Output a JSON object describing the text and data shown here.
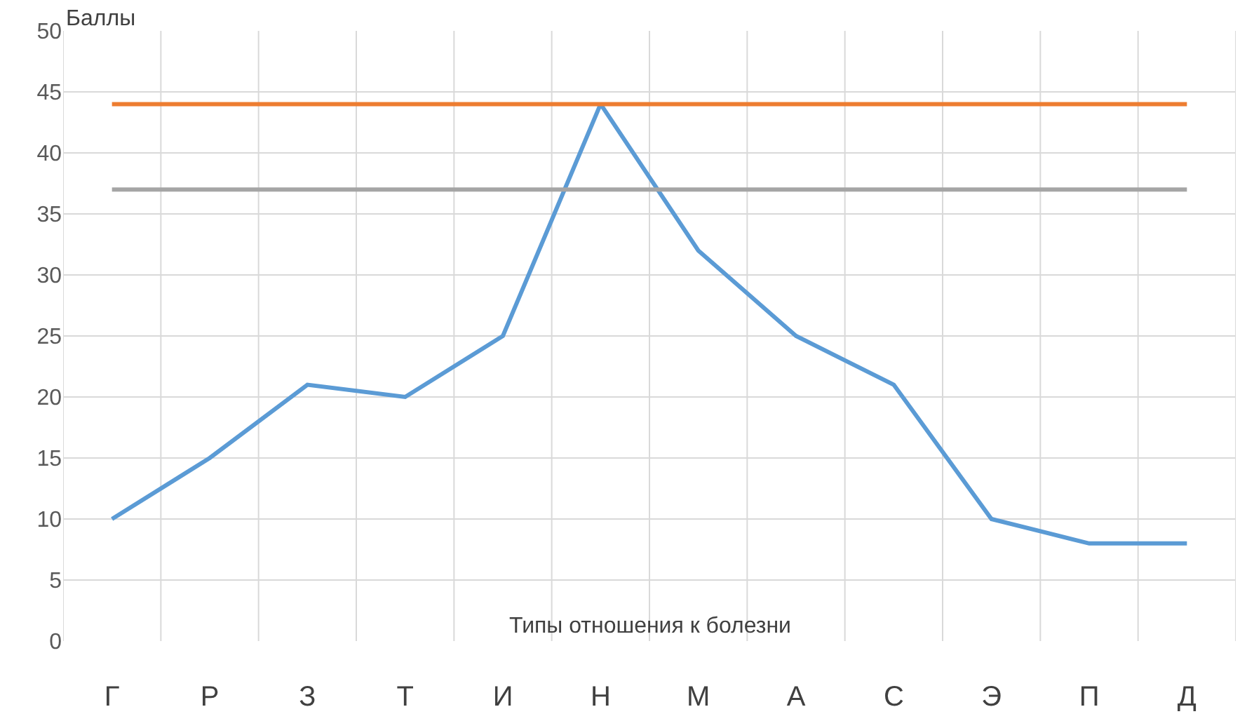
{
  "chart_data": {
    "type": "line",
    "ylabel": "Баллы",
    "xlabel": "Типы отношения к болезни",
    "categories": [
      "Г",
      "Р",
      "З",
      "Т",
      "И",
      "Н",
      "М",
      "А",
      "С",
      "Э",
      "П",
      "Д"
    ],
    "series": [
      {
        "color": "#5b9bd5",
        "values": [
          10,
          15,
          21,
          20,
          25,
          44,
          32,
          25,
          21,
          10,
          8,
          8
        ]
      }
    ],
    "ref_lines": [
      {
        "axis": "y",
        "value": 44,
        "color": "#ed7d31"
      },
      {
        "axis": "y",
        "value": 37,
        "color": "#a5a5a5"
      }
    ],
    "ylim": [
      0,
      50
    ],
    "yticks": [
      0,
      5,
      10,
      15,
      20,
      25,
      30,
      35,
      40,
      45,
      50
    ],
    "grid": true,
    "marker": "none",
    "line_style": "solid"
  }
}
